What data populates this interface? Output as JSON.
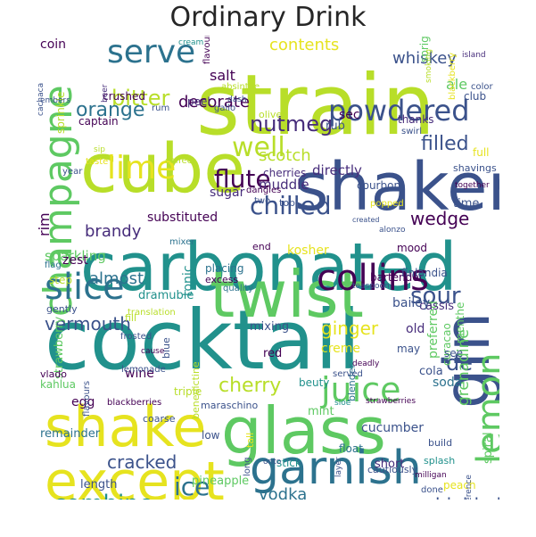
{
  "title": "Ordinary Drink",
  "palette": {
    "yellow": "#e6e31f",
    "lime": "#b8de29",
    "green": "#5ec962",
    "teal": "#21918c",
    "blue": "#2c728e",
    "indigo": "#3b528b",
    "purple": "#472d7b",
    "dark": "#440154"
  },
  "words": [
    {
      "t": "cocktail",
      "c": "teal"
    },
    {
      "t": "strain",
      "c": "lime"
    },
    {
      "t": "carbonated",
      "c": "teal"
    },
    {
      "t": "cube",
      "c": "lime"
    },
    {
      "t": "shaker",
      "c": "indigo"
    },
    {
      "t": "twist",
      "c": "green"
    },
    {
      "t": "glass",
      "c": "green"
    },
    {
      "t": "shake",
      "c": "yellow"
    },
    {
      "t": "gin",
      "c": "indigo"
    },
    {
      "t": "except",
      "c": "yellow"
    },
    {
      "t": "garnish",
      "c": "blue"
    },
    {
      "t": "champagne",
      "c": "green"
    },
    {
      "t": "slice",
      "c": "blue"
    },
    {
      "t": "collins",
      "c": "dark"
    },
    {
      "t": "lemon",
      "c": "green"
    },
    {
      "t": "juice",
      "c": "green"
    },
    {
      "t": "serve",
      "c": "blue"
    },
    {
      "t": "lime",
      "c": "yellow"
    },
    {
      "t": "powdered",
      "c": "indigo"
    },
    {
      "t": "well",
      "c": "lime"
    },
    {
      "t": "flute",
      "c": "dark"
    },
    {
      "t": "chilled",
      "c": "indigo"
    },
    {
      "t": "sour",
      "c": "indigo"
    },
    {
      "t": "combine",
      "c": "teal"
    },
    {
      "t": "ice",
      "c": "blue"
    },
    {
      "t": "bitter",
      "c": "lime"
    },
    {
      "t": "orange",
      "c": "blue"
    },
    {
      "t": "nutmeg",
      "c": "purple"
    },
    {
      "t": "filled",
      "c": "indigo"
    },
    {
      "t": "ginger",
      "c": "yellow"
    },
    {
      "t": "cherry",
      "c": "lime"
    },
    {
      "t": "vermouth",
      "c": "indigo"
    },
    {
      "t": "brandy",
      "c": "purple"
    },
    {
      "t": "cracked",
      "c": "indigo"
    },
    {
      "t": "highball",
      "c": "indigo"
    },
    {
      "t": "fashioned",
      "c": "teal"
    },
    {
      "t": "water",
      "c": "blue"
    },
    {
      "t": "electric",
      "c": "indigo"
    },
    {
      "t": "vodka",
      "c": "blue"
    },
    {
      "t": "almost",
      "c": "blue"
    },
    {
      "t": "de",
      "c": "indigo"
    },
    {
      "t": "wedge",
      "c": "dark"
    },
    {
      "t": "decorate",
      "c": "dark"
    },
    {
      "t": "scotch",
      "c": "lime"
    },
    {
      "t": "whiskey",
      "c": "indigo"
    },
    {
      "t": "grenadine",
      "c": "green"
    },
    {
      "t": "contents",
      "c": "yellow"
    },
    {
      "t": "salt",
      "c": "dark"
    },
    {
      "t": "sugar",
      "c": "purple"
    },
    {
      "t": "rim",
      "c": "dark"
    },
    {
      "t": "directly",
      "c": "purple"
    },
    {
      "t": "muddle",
      "c": "purple"
    },
    {
      "t": "substituted",
      "c": "dark"
    },
    {
      "t": "sparkling",
      "c": "green"
    },
    {
      "t": "zest",
      "c": "dark"
    },
    {
      "t": "crushed",
      "c": "dark"
    },
    {
      "t": "peel",
      "c": "purple"
    },
    {
      "t": "captain",
      "c": "dark"
    },
    {
      "t": "coin",
      "c": "dark"
    },
    {
      "t": "sprinkle",
      "c": "lime"
    },
    {
      "t": "olive",
      "c": "lime"
    },
    {
      "t": "sec",
      "c": "dark"
    },
    {
      "t": "rub",
      "c": "indigo"
    },
    {
      "t": "ale",
      "c": "green"
    },
    {
      "t": "club",
      "c": "indigo"
    },
    {
      "t": "time",
      "c": "indigo"
    },
    {
      "t": "preferred",
      "c": "green"
    },
    {
      "t": "curacao",
      "c": "green"
    },
    {
      "t": "menthe",
      "c": "green"
    },
    {
      "t": "old",
      "c": "purple"
    },
    {
      "t": "cassis",
      "c": "purple"
    },
    {
      "t": "soda",
      "c": "blue"
    },
    {
      "t": "cola",
      "c": "indigo"
    },
    {
      "t": "see",
      "c": "indigo"
    },
    {
      "t": "kosher",
      "c": "yellow"
    },
    {
      "t": "placing",
      "c": "blue"
    },
    {
      "t": "end",
      "c": "dark"
    },
    {
      "t": "bailey",
      "c": "indigo"
    },
    {
      "t": "tonic",
      "c": "teal"
    },
    {
      "t": "dramubie",
      "c": "teal"
    },
    {
      "t": "mixing",
      "c": "indigo"
    },
    {
      "t": "red",
      "c": "dark"
    },
    {
      "t": "spiral",
      "c": "green"
    },
    {
      "t": "creme",
      "c": "yellow"
    },
    {
      "t": "benedictine",
      "c": "lime"
    },
    {
      "t": "strawberry",
      "c": "green"
    },
    {
      "t": "egg",
      "c": "dark"
    },
    {
      "t": "remainder",
      "c": "blue"
    },
    {
      "t": "kahlua",
      "c": "green"
    },
    {
      "t": "wine",
      "c": "dark"
    },
    {
      "t": "triple",
      "c": "lime"
    },
    {
      "t": "maraschino",
      "c": "indigo"
    },
    {
      "t": "low",
      "c": "indigo"
    },
    {
      "t": "mint",
      "c": "green"
    },
    {
      "t": "build",
      "c": "indigo"
    },
    {
      "t": "cucumber",
      "c": "indigo"
    },
    {
      "t": "splash",
      "c": "teal"
    },
    {
      "t": "float",
      "c": "blue"
    },
    {
      "t": "short",
      "c": "purple"
    },
    {
      "t": "stick",
      "c": "teal"
    },
    {
      "t": "length",
      "c": "indigo"
    },
    {
      "t": "pineapple",
      "c": "green"
    },
    {
      "t": "dip",
      "c": "yellow"
    },
    {
      "t": "angostura",
      "c": "green"
    },
    {
      "t": "step",
      "c": "lime"
    },
    {
      "t": "blender",
      "c": "blue"
    },
    {
      "t": "gently",
      "c": "indigo"
    },
    {
      "t": "bartender",
      "c": "dark"
    },
    {
      "t": "finlandia",
      "c": "indigo"
    },
    {
      "t": "excess",
      "c": "dark"
    },
    {
      "t": "mood",
      "c": "dark"
    },
    {
      "t": "blackberry",
      "c": "yellow"
    },
    {
      "t": "sprig",
      "c": "green"
    },
    {
      "t": "thanks",
      "c": "purple"
    },
    {
      "t": "swirl",
      "c": "indigo"
    },
    {
      "t": "full",
      "c": "yellow"
    },
    {
      "t": "shavings",
      "c": "indigo"
    },
    {
      "t": "courbon",
      "c": "indigo"
    },
    {
      "t": "popped",
      "c": "yellow"
    },
    {
      "t": "together",
      "c": "dark"
    },
    {
      "t": "coffee",
      "c": "lime"
    },
    {
      "t": "cherries",
      "c": "purple"
    },
    {
      "t": "dangles",
      "c": "dark"
    },
    {
      "t": "two",
      "c": "indigo"
    },
    {
      "t": "top",
      "c": "indigo"
    },
    {
      "t": "mixer",
      "c": "blue"
    },
    {
      "t": "flag",
      "c": "blue"
    },
    {
      "t": "quality",
      "c": "blue"
    },
    {
      "t": "teaspoon",
      "c": "indigo"
    },
    {
      "t": "translation",
      "c": "lime"
    },
    {
      "t": "fill",
      "c": "lime"
    },
    {
      "t": "frosted",
      "c": "indigo"
    },
    {
      "t": "may",
      "c": "indigo"
    },
    {
      "t": "deadly",
      "c": "dark"
    },
    {
      "t": "beuty",
      "c": "teal"
    },
    {
      "t": "served",
      "c": "indigo"
    },
    {
      "t": "blue",
      "c": "indigo"
    },
    {
      "t": "lemonade",
      "c": "indigo"
    },
    {
      "t": "blackberries",
      "c": "dark"
    },
    {
      "t": "coarse",
      "c": "indigo"
    },
    {
      "t": "sloe",
      "c": "teal"
    },
    {
      "t": "strawberries",
      "c": "dark"
    },
    {
      "t": "layer",
      "c": "indigo"
    },
    {
      "t": "cautiously",
      "c": "indigo"
    },
    {
      "t": "milligan",
      "c": "dark"
    },
    {
      "t": "peach",
      "c": "yellow"
    },
    {
      "t": "done",
      "c": "indigo"
    },
    {
      "t": "reference",
      "c": "indigo"
    },
    {
      "t": "snifter",
      "c": "teal"
    },
    {
      "t": "bourbon",
      "c": "indigo"
    },
    {
      "t": "outer",
      "c": "indigo"
    },
    {
      "t": "speciality",
      "c": "indigo"
    },
    {
      "t": "grin",
      "c": "indigo"
    },
    {
      "t": "tall",
      "c": "yellow"
    },
    {
      "t": "long",
      "c": "indigo"
    },
    {
      "t": "onto",
      "c": "indigo"
    },
    {
      "t": "flavours",
      "c": "indigo"
    },
    {
      "t": "vlado",
      "c": "dark"
    },
    {
      "t": "cachaca",
      "c": "indigo"
    },
    {
      "t": "flavouring",
      "c": "dark"
    },
    {
      "t": "absinthe",
      "c": "lime"
    },
    {
      "t": "dash",
      "c": "indigo"
    },
    {
      "t": "gallo",
      "c": "indigo"
    },
    {
      "t": "rum",
      "c": "indigo"
    },
    {
      "t": "island",
      "c": "purple"
    },
    {
      "t": "color",
      "c": "indigo"
    },
    {
      "t": "taste",
      "c": "yellow"
    },
    {
      "t": "sip",
      "c": "lime"
    },
    {
      "t": "year",
      "c": "indigo"
    },
    {
      "t": "beer",
      "c": "purple"
    },
    {
      "t": "smoking",
      "c": "lime"
    },
    {
      "t": "cream",
      "c": "teal"
    },
    {
      "t": "embers",
      "c": "indigo"
    },
    {
      "t": "created",
      "c": "indigo"
    },
    {
      "t": "cause",
      "c": "dark"
    },
    {
      "t": "alonzo",
      "c": "indigo"
    }
  ]
}
